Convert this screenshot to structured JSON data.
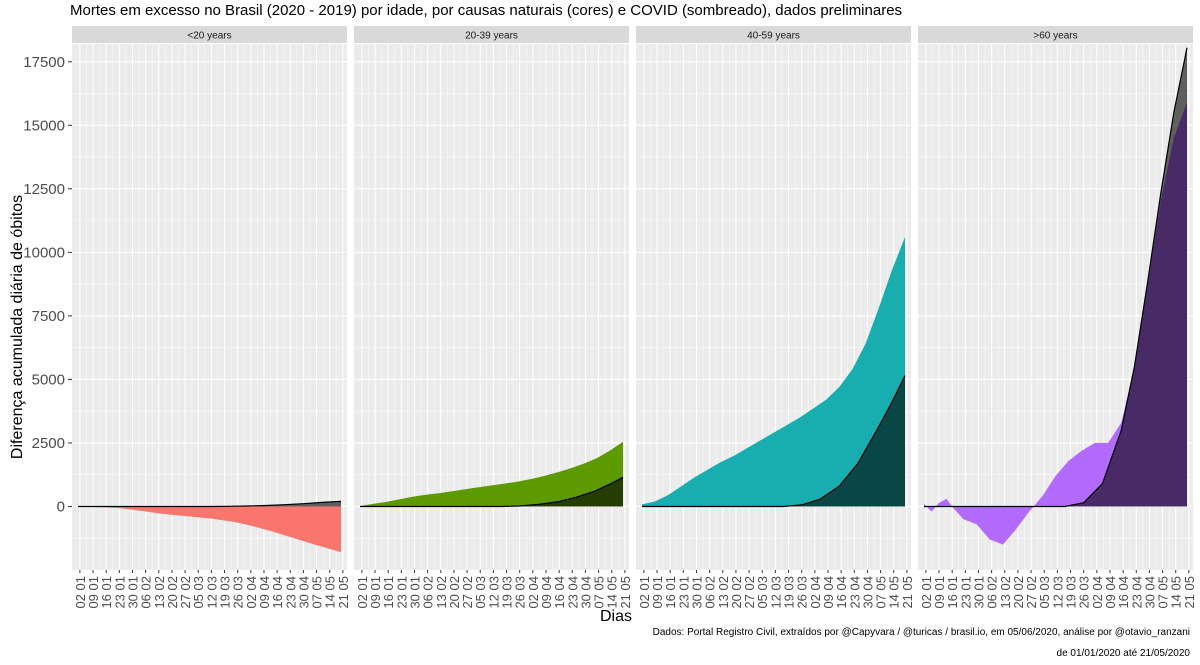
{
  "title": "Mortes em excesso no Brasil (2020 - 2019) por idade, por causas naturais (cores) e COVID (sombreado), dados preliminares",
  "ylabel": "Diferença acumulada diária de óbitos",
  "xlabel": "Dias",
  "caption_line1": "Dados: Portal Registro Civil, extraídos por @Capyvara / @turicas / brasil.io, em 05/06/2020, análise por @otavio_ranzani",
  "caption_line2": "de 01/01/2020 até 21/05/2020",
  "colors": {
    "panel_bg": "#ebebeb",
    "strip_bg": "#d9d9d9",
    "grid": "#ffffff",
    "covid_line": "#000000",
    "covid_fill_opacity": "0.6"
  },
  "chart_data": {
    "type": "area",
    "x_type": "date",
    "x_range": [
      "2020-01-01",
      "2020-05-21"
    ],
    "ylim": [
      -2500,
      18200
    ],
    "y_ticks": [
      0,
      2500,
      5000,
      7500,
      10000,
      12500,
      15000,
      17500
    ],
    "y_tick_labels": [
      "0",
      "2500",
      "5000",
      "7500",
      "10000",
      "12500",
      "15000",
      "17500"
    ],
    "x_tick_labels": [
      "02 01",
      "09 01",
      "16 01",
      "23 01",
      "30 01",
      "06 02",
      "13 02",
      "20 02",
      "27 02",
      "05 03",
      "12 03",
      "19 03",
      "26 03",
      "02 04",
      "09 04",
      "16 04",
      "23 04",
      "30 04",
      "07 05",
      "14 05",
      "21 05"
    ],
    "grid": true,
    "panels": [
      {
        "label": "<20 years",
        "color": "#f8766d",
        "excess": [
          [
            0,
            0
          ],
          [
            7,
            -15
          ],
          [
            14,
            -30
          ],
          [
            21,
            -60
          ],
          [
            28,
            -120
          ],
          [
            35,
            -190
          ],
          [
            42,
            -260
          ],
          [
            49,
            -320
          ],
          [
            56,
            -370
          ],
          [
            63,
            -420
          ],
          [
            70,
            -470
          ],
          [
            77,
            -540
          ],
          [
            84,
            -620
          ],
          [
            91,
            -740
          ],
          [
            98,
            -870
          ],
          [
            105,
            -1020
          ],
          [
            112,
            -1180
          ],
          [
            119,
            -1340
          ],
          [
            126,
            -1500
          ],
          [
            133,
            -1650
          ],
          [
            140,
            -1800
          ]
        ],
        "covid": [
          [
            0,
            0
          ],
          [
            70,
            0
          ],
          [
            80,
            5
          ],
          [
            90,
            20
          ],
          [
            100,
            40
          ],
          [
            110,
            70
          ],
          [
            120,
            110
          ],
          [
            130,
            160
          ],
          [
            140,
            200
          ]
        ]
      },
      {
        "label": "20-39 years",
        "color": "#5c9a00",
        "excess": [
          [
            0,
            20
          ],
          [
            7,
            100
          ],
          [
            14,
            180
          ],
          [
            21,
            280
          ],
          [
            28,
            380
          ],
          [
            35,
            460
          ],
          [
            42,
            520
          ],
          [
            49,
            600
          ],
          [
            56,
            680
          ],
          [
            63,
            760
          ],
          [
            70,
            830
          ],
          [
            77,
            900
          ],
          [
            84,
            980
          ],
          [
            91,
            1080
          ],
          [
            98,
            1200
          ],
          [
            105,
            1340
          ],
          [
            112,
            1500
          ],
          [
            119,
            1680
          ],
          [
            126,
            1900
          ],
          [
            133,
            2200
          ],
          [
            140,
            2550
          ]
        ],
        "covid": [
          [
            0,
            0
          ],
          [
            75,
            0
          ],
          [
            85,
            20
          ],
          [
            95,
            80
          ],
          [
            105,
            180
          ],
          [
            115,
            360
          ],
          [
            125,
            600
          ],
          [
            133,
            880
          ],
          [
            140,
            1150
          ]
        ]
      },
      {
        "label": "40-59 years",
        "color": "#18aeb0",
        "excess": [
          [
            0,
            80
          ],
          [
            7,
            200
          ],
          [
            14,
            450
          ],
          [
            21,
            800
          ],
          [
            28,
            1150
          ],
          [
            35,
            1450
          ],
          [
            42,
            1750
          ],
          [
            49,
            2000
          ],
          [
            56,
            2300
          ],
          [
            63,
            2600
          ],
          [
            70,
            2900
          ],
          [
            77,
            3200
          ],
          [
            84,
            3500
          ],
          [
            91,
            3850
          ],
          [
            98,
            4200
          ],
          [
            105,
            4700
          ],
          [
            112,
            5400
          ],
          [
            119,
            6400
          ],
          [
            126,
            7800
          ],
          [
            133,
            9300
          ],
          [
            140,
            10600
          ]
        ],
        "covid": [
          [
            0,
            0
          ],
          [
            75,
            0
          ],
          [
            85,
            60
          ],
          [
            95,
            300
          ],
          [
            105,
            800
          ],
          [
            115,
            1700
          ],
          [
            125,
            3000
          ],
          [
            133,
            4100
          ],
          [
            140,
            5150
          ]
        ]
      },
      {
        "label": ">60 years",
        "color": "#b36bff",
        "excess": [
          [
            0,
            100
          ],
          [
            4,
            -200
          ],
          [
            8,
            150
          ],
          [
            12,
            300
          ],
          [
            16,
            -100
          ],
          [
            21,
            -500
          ],
          [
            28,
            -700
          ],
          [
            35,
            -1300
          ],
          [
            42,
            -1500
          ],
          [
            49,
            -900
          ],
          [
            56,
            -200
          ],
          [
            63,
            400
          ],
          [
            70,
            1200
          ],
          [
            77,
            1800
          ],
          [
            84,
            2200
          ],
          [
            91,
            2500
          ],
          [
            98,
            2500
          ],
          [
            105,
            3300
          ],
          [
            112,
            5500
          ],
          [
            119,
            8700
          ],
          [
            126,
            12000
          ],
          [
            133,
            14500
          ],
          [
            140,
            15900
          ]
        ],
        "covid": [
          [
            0,
            0
          ],
          [
            75,
            0
          ],
          [
            85,
            150
          ],
          [
            95,
            900
          ],
          [
            105,
            3000
          ],
          [
            112,
            5500
          ],
          [
            119,
            8800
          ],
          [
            126,
            12300
          ],
          [
            133,
            15500
          ],
          [
            140,
            18050
          ]
        ]
      }
    ]
  }
}
